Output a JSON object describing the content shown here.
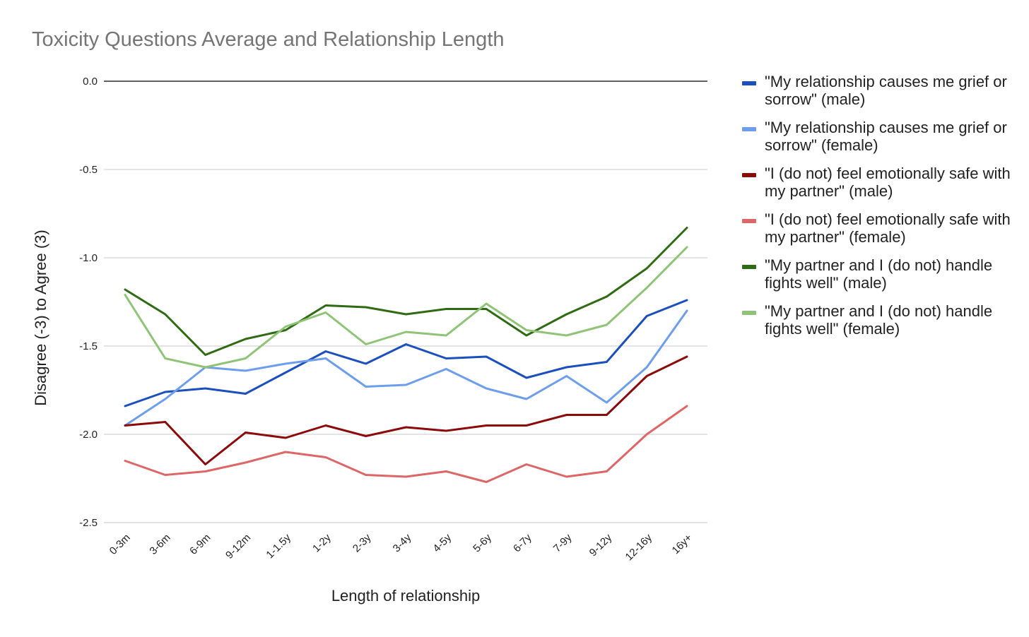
{
  "chart_data": {
    "type": "line",
    "title": "Toxicity Questions Average and Relationship Length",
    "xlabel": "Length of relationship",
    "ylabel": "Disagree (-3) to Agree (3)",
    "ylim": [
      -2.5,
      0.0
    ],
    "yticks": [
      "0.0",
      "-0.5",
      "-1.0",
      "-1.5",
      "-2.0",
      "-2.5"
    ],
    "ytick_values": [
      0.0,
      -0.5,
      -1.0,
      -1.5,
      -2.0,
      -2.5
    ],
    "grid": true,
    "legend_position": "right",
    "categories": [
      "0-3m",
      "3-6m",
      "6-9m",
      "9-12m",
      "1-1.5y",
      "1-2y",
      "2-3y",
      "3-4y",
      "4-5y",
      "5-6y",
      "6-7y",
      "7-9y",
      "9-12y",
      "12-16y",
      "16y+"
    ],
    "series": [
      {
        "name": "\"My relationship causes me grief or sorrow\" (male)",
        "color": "#1a4fbd",
        "values": [
          -1.84,
          -1.76,
          -1.74,
          -1.77,
          -1.65,
          -1.53,
          -1.6,
          -1.49,
          -1.57,
          -1.56,
          -1.68,
          -1.62,
          -1.59,
          -1.33,
          -1.24
        ]
      },
      {
        "name": "\"My relationship causes me grief or sorrow\" (female)",
        "color": "#6d9eeb",
        "values": [
          -1.95,
          -1.8,
          -1.62,
          -1.64,
          -1.6,
          -1.57,
          -1.73,
          -1.72,
          -1.63,
          -1.74,
          -1.8,
          -1.67,
          -1.82,
          -1.62,
          -1.3
        ]
      },
      {
        "name": "\"I (do not) feel emotionally safe with my partner\" (male)",
        "color": "#8b0a0a",
        "values": [
          -1.95,
          -1.93,
          -2.17,
          -1.99,
          -2.02,
          -1.95,
          -2.01,
          -1.96,
          -1.98,
          -1.95,
          -1.95,
          -1.89,
          -1.89,
          -1.67,
          -1.56
        ]
      },
      {
        "name": " \"I (do not) feel emotionally safe with my partner\" (female)",
        "color": "#dd6666",
        "values": [
          -2.15,
          -2.23,
          -2.21,
          -2.16,
          -2.1,
          -2.13,
          -2.23,
          -2.24,
          -2.21,
          -2.27,
          -2.17,
          -2.24,
          -2.21,
          -2.0,
          -1.84
        ]
      },
      {
        "name": "\"My partner and I (do not) handle fights well\" (male)",
        "color": "#2e6b12",
        "values": [
          -1.18,
          -1.32,
          -1.55,
          -1.46,
          -1.41,
          -1.27,
          -1.28,
          -1.32,
          -1.29,
          -1.29,
          -1.44,
          -1.32,
          -1.22,
          -1.06,
          -0.83
        ]
      },
      {
        "name": "\"My partner and I (do not) handle fights well\" (female)",
        "color": "#8fc477",
        "values": [
          -1.21,
          -1.57,
          -1.62,
          -1.57,
          -1.39,
          -1.31,
          -1.49,
          -1.42,
          -1.44,
          -1.26,
          -1.41,
          -1.44,
          -1.38,
          -1.17,
          -0.94
        ]
      }
    ]
  }
}
